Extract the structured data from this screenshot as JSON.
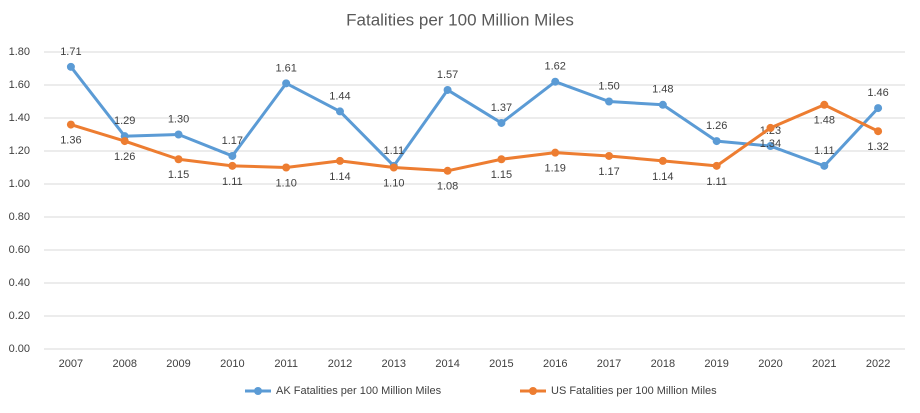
{
  "chart_data": {
    "type": "line",
    "title": "Fatalities per 100 Million Miles",
    "categories": [
      "2007",
      "2008",
      "2009",
      "2010",
      "2011",
      "2012",
      "2013",
      "2014",
      "2015",
      "2016",
      "2017",
      "2018",
      "2019",
      "2020",
      "2021",
      "2022"
    ],
    "series": [
      {
        "name": "AK Fatalities per 100 Million Miles",
        "color": "#5b9bd5",
        "values": [
          1.71,
          1.29,
          1.3,
          1.17,
          1.61,
          1.44,
          1.11,
          1.57,
          1.37,
          1.62,
          1.5,
          1.48,
          1.26,
          1.23,
          1.11,
          1.46
        ],
        "value_labels": [
          "1.71",
          "1.29",
          "1.30",
          "1.17",
          "1.61",
          "1.44",
          "1.11",
          "1.57",
          "1.37",
          "1.62",
          "1.50",
          "1.48",
          "1.26",
          "1.23",
          "1.11",
          "1.46"
        ]
      },
      {
        "name": "US Fatalities per 100 Million  Miles",
        "color": "#ed7d31",
        "values": [
          1.36,
          1.26,
          1.15,
          1.11,
          1.1,
          1.14,
          1.1,
          1.08,
          1.15,
          1.19,
          1.17,
          1.14,
          1.11,
          1.34,
          1.48,
          1.32
        ],
        "value_labels": [
          "1.36",
          "1.26",
          "1.15",
          "1.11",
          "1.10",
          "1.14",
          "1.10",
          "1.08",
          "1.15",
          "1.19",
          "1.17",
          "1.14",
          "1.11",
          "1.34",
          "1.48",
          "1.32"
        ]
      }
    ],
    "ylim": [
      0,
      1.8
    ],
    "yticks": [
      {
        "value": 0,
        "label": "0.00"
      },
      {
        "value": 0.2,
        "label": "0.20"
      },
      {
        "value": 0.4,
        "label": "0.40"
      },
      {
        "value": 0.6,
        "label": "0.60"
      },
      {
        "value": 0.8,
        "label": "0.80"
      },
      {
        "value": 1,
        "label": "1.00"
      },
      {
        "value": 1.2,
        "label": "1.20"
      },
      {
        "value": 1.4,
        "label": "1.40"
      },
      {
        "value": 1.6,
        "label": "1.60"
      },
      {
        "value": 1.8,
        "label": "1.80"
      }
    ],
    "grid": true,
    "legend": "bottom"
  }
}
